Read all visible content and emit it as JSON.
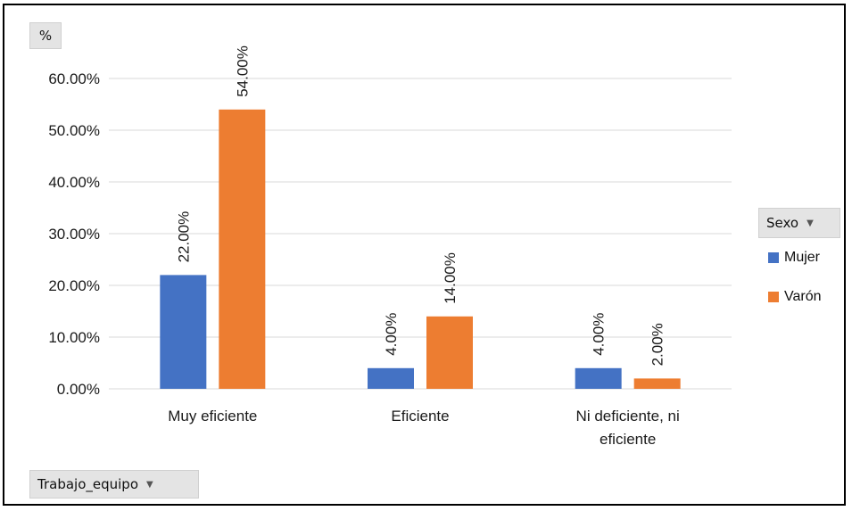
{
  "fields": {
    "value_field": "%",
    "legend_field": "Sexo",
    "axis_field": "Trabajo_equipo"
  },
  "chart_data": {
    "type": "bar",
    "categories": [
      [
        "Muy eficiente"
      ],
      [
        "Eficiente"
      ],
      [
        "Ni deficiente, ni",
        "eficiente"
      ]
    ],
    "series": [
      {
        "name": "Mujer",
        "values": [
          22,
          4,
          4
        ],
        "labels": [
          "22.00%",
          "4.00%",
          "4.00%"
        ],
        "color": "#4472C4"
      },
      {
        "name": "Varón",
        "values": [
          54,
          14,
          2
        ],
        "labels": [
          "54.00%",
          "14.00%",
          "2.00%"
        ],
        "color": "#ED7D31"
      }
    ],
    "ylim": [
      0,
      60
    ],
    "yticks": [
      0,
      10,
      20,
      30,
      40,
      50,
      60
    ],
    "ytick_labels": [
      "0.00%",
      "10.00%",
      "20.00%",
      "30.00%",
      "40.00%",
      "50.00%",
      "60.00%"
    ],
    "gridlines": true,
    "gridline_color": "#d9d9d9",
    "legend_position": "right"
  }
}
